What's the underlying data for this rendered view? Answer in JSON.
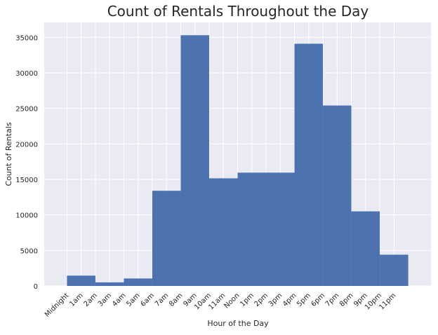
{
  "chart_data": {
    "type": "bar",
    "title": "Count of Rentals Throughout the Day",
    "xlabel": "Hour of the Day",
    "ylabel": "Count of Rentals",
    "categories": [
      "Midnight",
      "1am",
      "2am",
      "3am",
      "4am",
      "5am",
      "6am",
      "7am",
      "8am",
      "9am",
      "10am",
      "11am",
      "Noon",
      "1pm",
      "2pm",
      "3pm",
      "4pm",
      "5pm",
      "6pm",
      "7pm",
      "8pm",
      "9pm",
      "10pm",
      "11pm"
    ],
    "bins": [
      {
        "start": 0,
        "end": 2,
        "value": 1450
      },
      {
        "start": 2,
        "end": 4,
        "value": 500
      },
      {
        "start": 4,
        "end": 6,
        "value": 1050
      },
      {
        "start": 6,
        "end": 8,
        "value": 13400
      },
      {
        "start": 8,
        "end": 10,
        "value": 35300
      },
      {
        "start": 10,
        "end": 12,
        "value": 15150
      },
      {
        "start": 12,
        "end": 14,
        "value": 15950
      },
      {
        "start": 14,
        "end": 16,
        "value": 15950
      },
      {
        "start": 16,
        "end": 18,
        "value": 34100
      },
      {
        "start": 18,
        "end": 20,
        "value": 25400
      },
      {
        "start": 20,
        "end": 22,
        "value": 10500
      },
      {
        "start": 22,
        "end": 24,
        "value": 4400
      }
    ],
    "ylim": [
      0,
      37100
    ],
    "yticks": [
      0,
      5000,
      10000,
      15000,
      20000,
      25000,
      30000,
      35000
    ],
    "xlim": [
      -1.6,
      25.6
    ],
    "grid": true,
    "colors": {
      "bar": "#4c72b0",
      "background": "#eaeaf2",
      "grid": "#ffffff",
      "text": "#262626"
    }
  }
}
